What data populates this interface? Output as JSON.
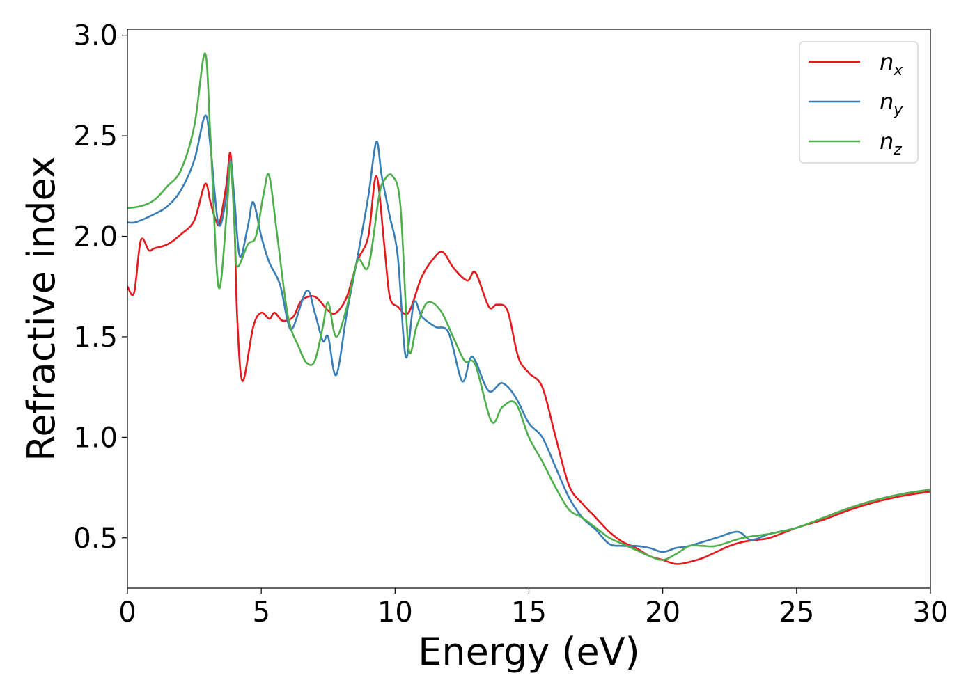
{
  "chart_data": {
    "type": "line",
    "xlabel": "Energy (eV)",
    "ylabel": "Refractive index",
    "xlim": [
      0,
      30
    ],
    "ylim": [
      0.25,
      3.03
    ],
    "xticks": [
      0,
      5,
      10,
      15,
      20,
      25,
      30
    ],
    "xtick_labels": [
      "0",
      "5",
      "10",
      "15",
      "20",
      "25",
      "30"
    ],
    "yticks": [
      0.5,
      1.0,
      1.5,
      2.0,
      2.5,
      3.0
    ],
    "ytick_labels": [
      "0.5",
      "1.0",
      "1.5",
      "2.0",
      "2.5",
      "3.0"
    ],
    "grid": false,
    "legend_position": "top-right",
    "series": [
      {
        "name": "n",
        "subscript": "x",
        "color": "#e41a1c",
        "x": [
          0,
          0.25,
          0.5,
          0.8,
          1.0,
          1.5,
          2.0,
          2.5,
          2.9,
          3.1,
          3.3,
          3.45,
          3.7,
          3.85,
          4.0,
          4.1,
          4.3,
          4.7,
          5.0,
          5.3,
          5.5,
          5.8,
          6.2,
          6.5,
          7.0,
          7.5,
          7.8,
          8.2,
          8.6,
          9.0,
          9.3,
          9.6,
          9.8,
          10.1,
          10.5,
          11.0,
          11.5,
          11.8,
          12.2,
          12.7,
          13.0,
          13.5,
          13.8,
          14.2,
          14.6,
          15.0,
          15.5,
          16.0,
          16.5,
          17.0,
          17.5,
          18.0,
          18.5,
          19.0,
          19.5,
          20.0,
          20.5,
          21.0,
          21.5,
          22.0,
          22.5,
          23.0,
          23.5,
          24.0,
          25.0,
          26.0,
          27.0,
          28.0,
          29.0,
          30.0
        ],
        "y": [
          1.75,
          1.72,
          1.98,
          1.93,
          1.94,
          1.96,
          2.01,
          2.08,
          2.26,
          2.17,
          2.08,
          2.07,
          2.26,
          2.41,
          2.05,
          1.6,
          1.28,
          1.55,
          1.62,
          1.59,
          1.62,
          1.58,
          1.6,
          1.68,
          1.7,
          1.63,
          1.62,
          1.7,
          1.88,
          2.0,
          2.3,
          1.95,
          1.7,
          1.65,
          1.62,
          1.8,
          1.9,
          1.92,
          1.84,
          1.78,
          1.82,
          1.65,
          1.66,
          1.63,
          1.4,
          1.32,
          1.25,
          1.0,
          0.76,
          0.67,
          0.6,
          0.53,
          0.48,
          0.45,
          0.41,
          0.39,
          0.37,
          0.38,
          0.4,
          0.43,
          0.46,
          0.48,
          0.49,
          0.5,
          0.55,
          0.59,
          0.64,
          0.68,
          0.71,
          0.73
        ]
      },
      {
        "name": "n",
        "subscript": "y",
        "color": "#377eb8",
        "x": [
          0,
          0.3,
          1.0,
          1.5,
          2.0,
          2.5,
          2.9,
          3.1,
          3.4,
          3.7,
          3.85,
          4.0,
          4.2,
          4.5,
          4.7,
          5.0,
          5.3,
          5.7,
          6.0,
          6.2,
          6.7,
          7.0,
          7.3,
          7.5,
          7.8,
          8.2,
          8.6,
          9.0,
          9.3,
          9.5,
          9.8,
          10.1,
          10.4,
          10.7,
          11.0,
          11.5,
          12.0,
          12.5,
          12.8,
          13.0,
          13.5,
          14.0,
          14.5,
          15.0,
          15.5,
          16.0,
          16.5,
          17.0,
          17.5,
          18.0,
          18.5,
          19.0,
          19.5,
          20.0,
          20.5,
          21.0,
          22.0,
          22.8,
          23.3,
          24.0,
          25.0,
          26.0,
          27.0,
          28.0,
          29.0,
          30.0
        ],
        "y": [
          2.07,
          2.07,
          2.11,
          2.15,
          2.23,
          2.38,
          2.6,
          2.45,
          2.06,
          2.2,
          2.38,
          2.18,
          1.9,
          2.05,
          2.17,
          2.0,
          1.87,
          1.76,
          1.57,
          1.55,
          1.73,
          1.62,
          1.48,
          1.5,
          1.31,
          1.62,
          1.9,
          2.2,
          2.47,
          2.3,
          2.1,
          1.9,
          1.4,
          1.67,
          1.6,
          1.55,
          1.52,
          1.28,
          1.39,
          1.38,
          1.23,
          1.27,
          1.2,
          1.07,
          1.0,
          0.85,
          0.7,
          0.6,
          0.54,
          0.47,
          0.46,
          0.46,
          0.45,
          0.43,
          0.45,
          0.46,
          0.5,
          0.53,
          0.49,
          0.52,
          0.55,
          0.6,
          0.65,
          0.69,
          0.72,
          0.74
        ]
      },
      {
        "name": "n",
        "subscript": "z",
        "color": "#4daf4a",
        "x": [
          0,
          0.5,
          1.0,
          1.5,
          2.0,
          2.5,
          2.9,
          3.1,
          3.4,
          3.7,
          3.85,
          4.0,
          4.1,
          4.5,
          4.8,
          5.1,
          5.3,
          5.6,
          6.0,
          6.4,
          6.7,
          7.0,
          7.3,
          7.5,
          7.8,
          8.2,
          8.6,
          9.0,
          9.4,
          9.6,
          9.9,
          10.2,
          10.5,
          10.8,
          11.2,
          11.7,
          12.2,
          12.6,
          13.0,
          13.6,
          14.0,
          14.5,
          15.0,
          15.5,
          16.0,
          16.5,
          17.0,
          17.5,
          18.0,
          18.5,
          19.0,
          19.5,
          20.0,
          20.5,
          21.0,
          21.5,
          22.0,
          23.0,
          24.0,
          25.0,
          26.0,
          27.0,
          28.0,
          29.0,
          30.0
        ],
        "y": [
          2.14,
          2.15,
          2.18,
          2.25,
          2.33,
          2.55,
          2.91,
          2.5,
          1.75,
          2.1,
          2.37,
          2.05,
          1.85,
          1.96,
          2.0,
          2.22,
          2.3,
          2.0,
          1.6,
          1.45,
          1.37,
          1.38,
          1.55,
          1.67,
          1.5,
          1.65,
          1.88,
          1.85,
          2.2,
          2.28,
          2.3,
          2.15,
          1.45,
          1.55,
          1.67,
          1.63,
          1.49,
          1.38,
          1.36,
          1.08,
          1.15,
          1.17,
          1.0,
          0.88,
          0.75,
          0.64,
          0.6,
          0.55,
          0.5,
          0.47,
          0.44,
          0.41,
          0.39,
          0.42,
          0.46,
          0.46,
          0.46,
          0.5,
          0.52,
          0.55,
          0.6,
          0.65,
          0.69,
          0.72,
          0.74
        ]
      }
    ]
  }
}
